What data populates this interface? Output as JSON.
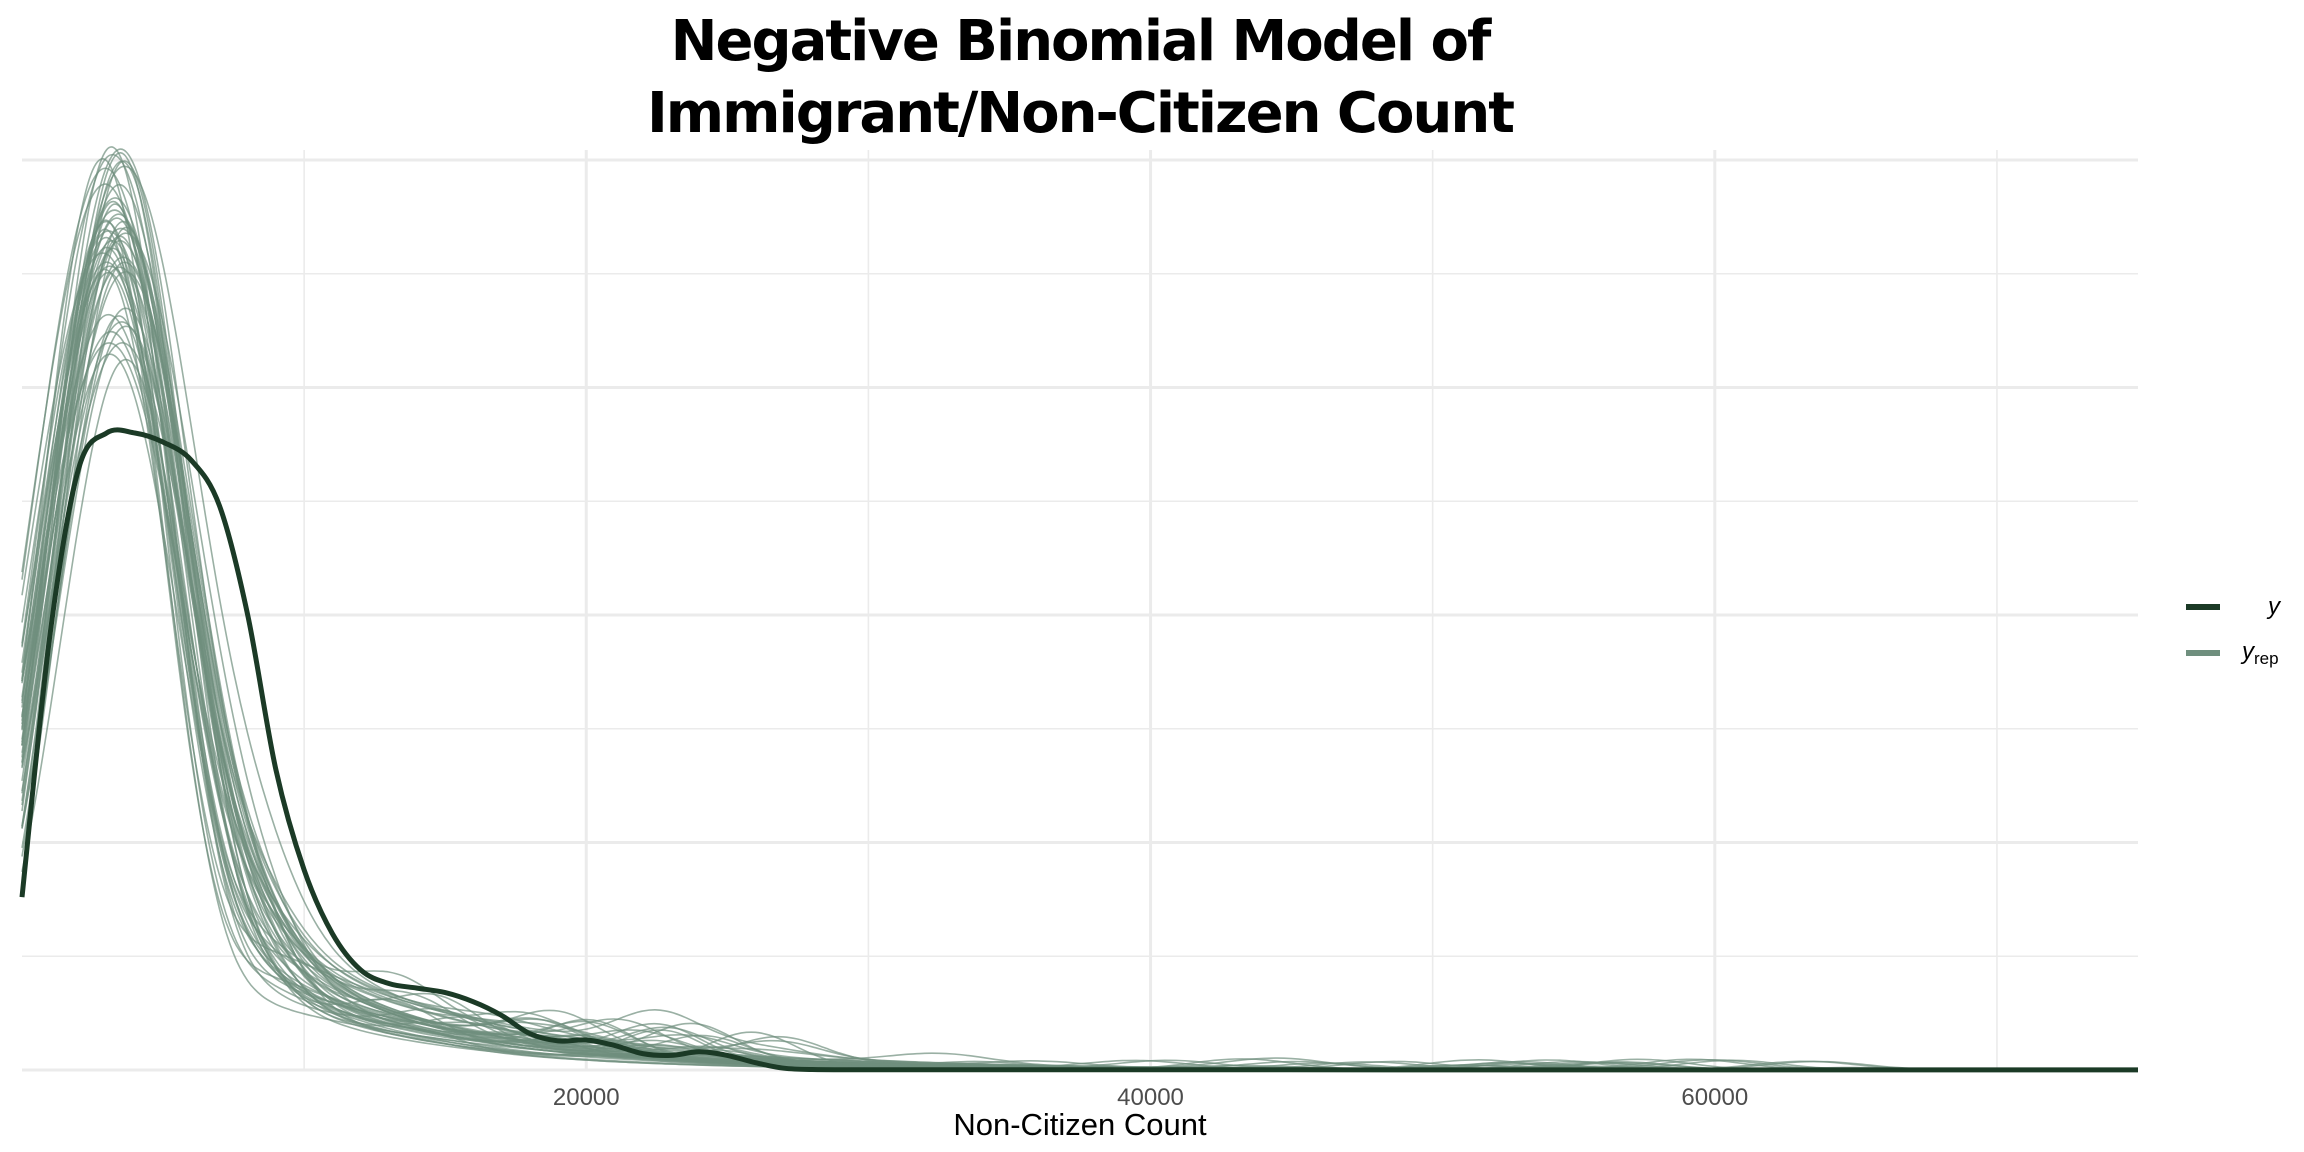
{
  "chart_data": {
    "type": "line",
    "title": [
      "Negative Binomial Model of",
      "Immigrant/Non-Citizen Count"
    ],
    "xlabel": "Non-Citizen Count",
    "ylabel": "",
    "xlim": [
      0,
      75000
    ],
    "ylim": [
      0,
      1.0
    ],
    "x_ticks": [
      20000,
      40000,
      60000
    ],
    "x_tick_labels": [
      "20000",
      "40000",
      "60000"
    ],
    "x_minor_ticks": [
      10000,
      30000,
      50000,
      70000
    ],
    "y_axis_labels_shown": false,
    "grid": true,
    "legend": {
      "placement": "right",
      "entries": [
        {
          "label": "y",
          "sub": ""
        },
        {
          "label": "y",
          "sub": "rep"
        }
      ]
    },
    "colors": {
      "y": "#1b3a26",
      "y_rep": "#6f8f7e",
      "grid": "#ebebeb"
    },
    "series": [
      {
        "key": "y",
        "x": [
          0,
          1000,
          2000,
          3000,
          4000,
          5000,
          6000,
          7000,
          8000,
          9000,
          10000,
          11000,
          12000,
          13000,
          14000,
          15000,
          16000,
          17000,
          18000,
          19000,
          20000,
          21000,
          22000,
          23000,
          24000,
          25000,
          26000,
          27000,
          28000,
          30000,
          35000,
          40000,
          45000,
          50000,
          55000,
          60000,
          65000,
          70000,
          75000
        ],
        "values": [
          0.19,
          0.48,
          0.66,
          0.7,
          0.7,
          0.69,
          0.67,
          0.62,
          0.5,
          0.33,
          0.22,
          0.15,
          0.11,
          0.095,
          0.09,
          0.085,
          0.075,
          0.06,
          0.04,
          0.032,
          0.033,
          0.027,
          0.018,
          0.016,
          0.02,
          0.016,
          0.008,
          0.002,
          0.0005,
          0.0003,
          0.0002,
          0.0002,
          0.0002,
          0.0001,
          0.0001,
          0.0001,
          0.0001,
          0.0001,
          0.0001
        ]
      }
    ]
  }
}
